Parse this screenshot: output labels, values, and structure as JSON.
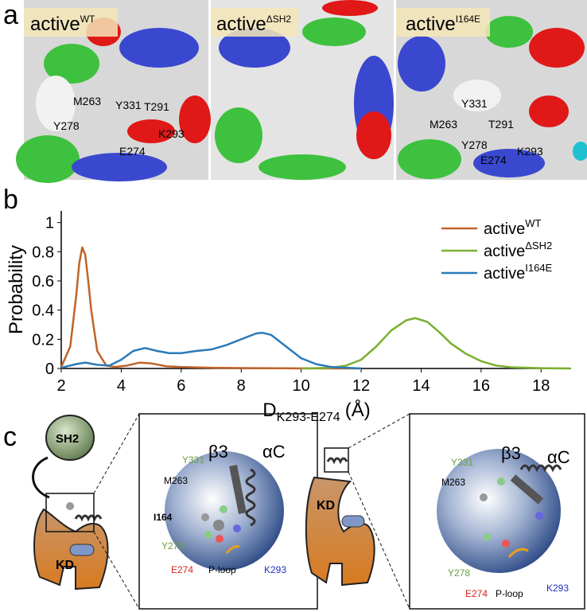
{
  "panel_a": {
    "label": "a",
    "panels": [
      {
        "title": "active",
        "title_superscript": "WT",
        "residues": [
          "Y331",
          "M263",
          "T291",
          "Y278",
          "K293",
          "E274"
        ]
      },
      {
        "title": "active",
        "title_superscript": "ΔSH2"
      },
      {
        "title": "active",
        "title_superscript": "I164E",
        "residues": [
          "Y331",
          "M263",
          "T291",
          "Y278",
          "K293",
          "E274"
        ]
      }
    ]
  },
  "panel_b_label": "b",
  "chart_data": {
    "type": "line",
    "ylabel": "Probability",
    "xlabel": "D",
    "xlabel_subscript": "K293-E274",
    "xlabel_unit": "(Å)",
    "xlim": [
      2,
      19
    ],
    "ylim": [
      0,
      1.08
    ],
    "xticks": [
      2,
      4,
      6,
      8,
      10,
      12,
      14,
      16,
      18
    ],
    "yticks": [
      0,
      0.2,
      0.4,
      0.6,
      0.8,
      1
    ],
    "legend": "upper right",
    "series": [
      {
        "name": "active",
        "name_superscript": "WT",
        "color": "#c0632a",
        "x": [
          2,
          2.3,
          2.5,
          2.6,
          2.7,
          2.8,
          2.9,
          3.0,
          3.2,
          3.5,
          3.8,
          4.2,
          4.6,
          5.0,
          5.5,
          6,
          7,
          8,
          10,
          12
        ],
        "values": [
          0.01,
          0.15,
          0.5,
          0.72,
          0.83,
          0.78,
          0.6,
          0.4,
          0.12,
          0.02,
          0.01,
          0.02,
          0.04,
          0.035,
          0.015,
          0.01,
          0.005,
          0.003,
          0.001,
          0
        ]
      },
      {
        "name": "active",
        "name_superscript": "ΔSH2",
        "color": "#7ab030",
        "x": [
          10,
          11,
          11.5,
          12,
          12.5,
          13,
          13.5,
          13.8,
          14.2,
          14.6,
          15,
          15.5,
          16,
          16.5,
          17,
          18,
          19
        ],
        "values": [
          0,
          0.005,
          0.02,
          0.06,
          0.15,
          0.26,
          0.33,
          0.345,
          0.32,
          0.25,
          0.17,
          0.1,
          0.05,
          0.02,
          0.008,
          0.002,
          0
        ]
      },
      {
        "name": "active",
        "name_superscript": "I164E",
        "color": "#2a7ab8",
        "x": [
          2,
          2.5,
          2.8,
          3.2,
          3.6,
          4.0,
          4.4,
          4.8,
          5.2,
          5.6,
          6,
          6.5,
          7,
          7.5,
          8,
          8.5,
          8.7,
          9,
          9.5,
          10,
          10.5,
          11,
          12
        ],
        "values": [
          0.005,
          0.03,
          0.04,
          0.025,
          0.02,
          0.06,
          0.12,
          0.14,
          0.12,
          0.105,
          0.105,
          0.12,
          0.13,
          0.16,
          0.2,
          0.24,
          0.245,
          0.23,
          0.15,
          0.07,
          0.03,
          0.01,
          0
        ]
      }
    ]
  },
  "panel_c": {
    "label": "c",
    "left": {
      "sh2": "SH2",
      "kd": "KD",
      "beta3": "β3",
      "alphaC": "αC",
      "residues": [
        "Y331",
        "M263",
        "I164",
        "Y278",
        "E274",
        "P-loop",
        "K293"
      ]
    },
    "right": {
      "kd": "KD",
      "beta3": "β3",
      "alphaC": "αC",
      "residues": [
        "Y331",
        "M263",
        "Y278",
        "E274",
        "P-loop",
        "K293"
      ]
    }
  }
}
